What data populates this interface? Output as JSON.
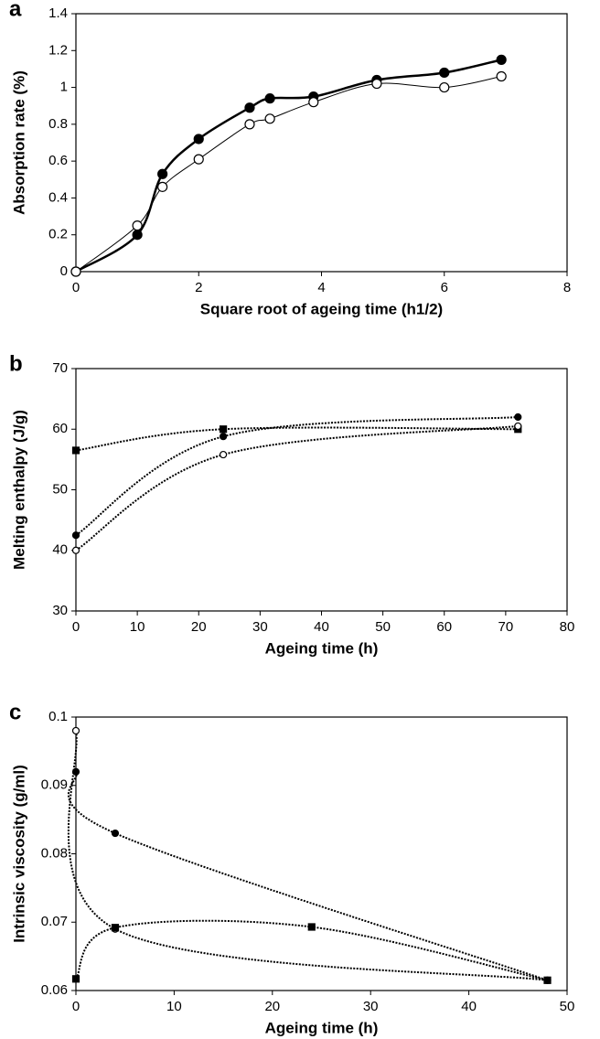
{
  "chart_data": [
    {
      "type": "scatter",
      "label": "a",
      "xlabel": "Square root of ageing time (h1/2)",
      "ylabel": "Absorption rate (%)",
      "xlim": [
        0,
        8
      ],
      "xticks": [
        0,
        2,
        4,
        6,
        8
      ],
      "ylim": [
        0,
        1.4
      ],
      "yticks": [
        0,
        0.2,
        0.4,
        0.6,
        0.8,
        1,
        1.2,
        1.4
      ],
      "line_style": "solid",
      "series": [
        {
          "marker": "circle",
          "fill": "#000000",
          "color": "#000000",
          "line_width": 2.5,
          "x": [
            0,
            1,
            1.41,
            2,
            2.83,
            3.16,
            3.87,
            4.9,
            6,
            6.93
          ],
          "values": [
            0,
            0.2,
            0.53,
            0.72,
            0.89,
            0.94,
            0.95,
            1.04,
            1.08,
            1.15
          ]
        },
        {
          "marker": "circle",
          "fill": "#ffffff",
          "color": "#000000",
          "line_width": 1,
          "x": [
            0,
            1,
            1.41,
            2,
            2.83,
            3.16,
            3.87,
            4.9,
            6,
            6.93
          ],
          "values": [
            0,
            0.25,
            0.46,
            0.61,
            0.8,
            0.83,
            0.92,
            1.02,
            1.0,
            1.06
          ]
        }
      ]
    },
    {
      "type": "scatter",
      "label": "b",
      "xlabel": "Ageing time (h)",
      "ylabel": "Melting enthalpy (J/g)",
      "xlim": [
        0,
        80
      ],
      "xticks": [
        0,
        10,
        20,
        30,
        40,
        50,
        60,
        70,
        80
      ],
      "ylim": [
        30,
        70
      ],
      "yticks": [
        30,
        40,
        50,
        60,
        70
      ],
      "line_style": "dotted",
      "series": [
        {
          "marker": "square",
          "fill": "#000000",
          "color": "#000000",
          "line_width": 2,
          "x": [
            0,
            24,
            72
          ],
          "values": [
            56.5,
            60,
            60
          ]
        },
        {
          "marker": "circle",
          "fill": "#000000",
          "color": "#000000",
          "line_width": 2,
          "x": [
            0,
            24,
            72
          ],
          "values": [
            42.5,
            58.8,
            62
          ]
        },
        {
          "marker": "circle",
          "fill": "#ffffff",
          "color": "#000000",
          "line_width": 2,
          "x": [
            0,
            24,
            72
          ],
          "values": [
            40,
            55.8,
            60.5
          ]
        }
      ]
    },
    {
      "type": "scatter",
      "label": "c",
      "xlabel": "Ageing time (h)",
      "ylabel": "Intrinsic viscosity (g/ml)",
      "xlim": [
        0,
        50
      ],
      "xticks": [
        0,
        10,
        20,
        30,
        40,
        50
      ],
      "ylim": [
        0.06,
        0.1
      ],
      "yticks": [
        0.06,
        0.07,
        0.08,
        0.09,
        0.1
      ],
      "line_style": "dotted",
      "series": [
        {
          "marker": "circle",
          "fill": "#ffffff",
          "color": "#000000",
          "line_width": 2,
          "x": [
            0,
            4,
            48
          ],
          "values": [
            0.098,
            0.069,
            0.0615
          ]
        },
        {
          "marker": "circle",
          "fill": "#000000",
          "color": "#000000",
          "line_width": 2,
          "x": [
            0,
            4,
            48
          ],
          "values": [
            0.092,
            0.083,
            0.0615
          ]
        },
        {
          "marker": "square",
          "fill": "#000000",
          "color": "#000000",
          "line_width": 2,
          "x": [
            0,
            4,
            24,
            48
          ],
          "values": [
            0.0617,
            0.0692,
            0.0693,
            0.0615
          ]
        }
      ]
    }
  ]
}
